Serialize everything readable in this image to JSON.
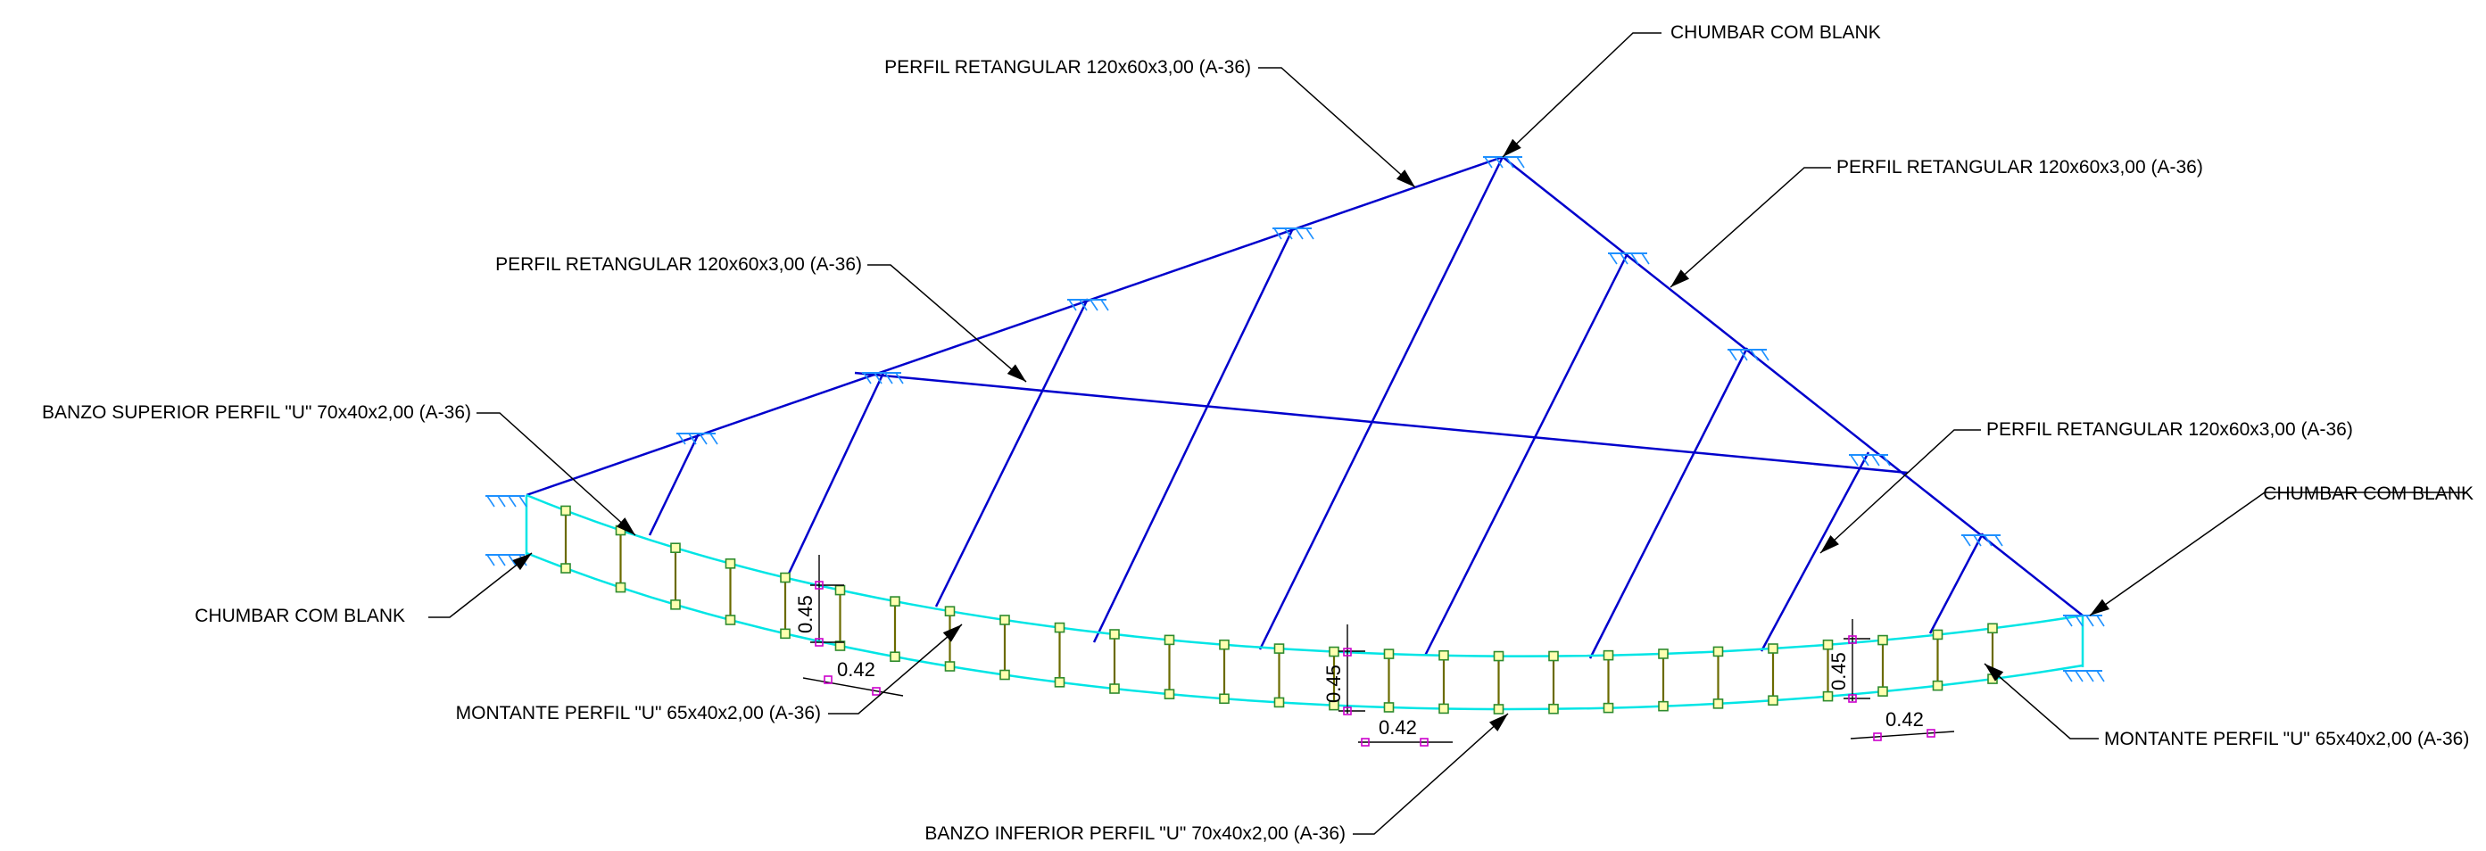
{
  "colors": {
    "frame": "#0000cc",
    "chord": "#00e5e5",
    "web": "#6b6b00",
    "support": "#1e90ff",
    "node": "#2e8b2e",
    "node_fill": "#ffffb0",
    "dim_node": "#cc00cc",
    "leader": "#000000"
  },
  "callouts": {
    "perfil_top_left": "PERFIL RETANGULAR 120x60x3,00 (A-36)",
    "chumbar_top": "CHUMBAR COM BLANK",
    "perfil_top_right": "PERFIL RETANGULAR 120x60x3,00 (A-36)",
    "perfil_mid_left": "PERFIL RETANGULAR 120x60x3,00 (A-36)",
    "perfil_mid_right": "PERFIL RETANGULAR 120x60x3,00 (A-36)",
    "banzo_superior": "BANZO SUPERIOR PERFIL \"U\" 70x40x2,00 (A-36)",
    "chumbar_right": "CHUMBAR COM BLANK",
    "chumbar_left": "CHUMBAR COM BLANK",
    "montante_left": "MONTANTE PERFIL \"U\" 65x40x2,00 (A-36)",
    "montante_right": "MONTANTE PERFIL \"U\" 65x40x2,00 (A-36)",
    "banzo_inferior": "BANZO INFERIOR PERFIL \"U\" 70x40x2,00 (A-36)"
  },
  "dimensions": {
    "height_left": "0.45",
    "width_left": "0.42",
    "height_center": "0.45",
    "width_center": "0.42",
    "height_right": "0.45",
    "width_right": "0.42"
  }
}
